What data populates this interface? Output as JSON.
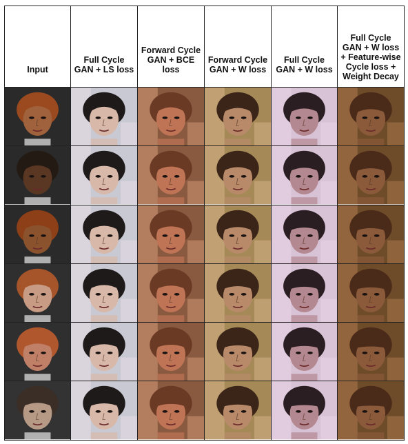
{
  "table": {
    "headers": [
      "Input",
      "Full Cycle GAN + LS loss",
      "Forward Cycle GAN + BCE loss",
      "Forward Cycle GAN + W loss",
      "Full Cycle GAN + W loss",
      "Full Cycle GAN + W loss + Feature-wise Cycle loss + Weight Decay"
    ],
    "rows": 6,
    "input_faces": [
      {
        "skin": "#a0623c",
        "hair": "#9a4a1e",
        "bg": "#2a2a2a"
      },
      {
        "skin": "#5a3722",
        "hair": "#241a14",
        "bg": "#2a2a2a"
      },
      {
        "skin": "#8b522e",
        "hair": "#8d3f17",
        "bg": "#2a2a2a"
      },
      {
        "skin": "#c89c84",
        "hair": "#a6552a",
        "bg": "#2f2f2f"
      },
      {
        "skin": "#c08068",
        "hair": "#b0572e",
        "bg": "#2f2f2f"
      },
      {
        "skin": "#b69a86",
        "hair": "#3a2e27",
        "bg": "#333333"
      }
    ],
    "output_styles": [
      {
        "skin": "#d8b8a8",
        "hair": "#1e1a1a",
        "bg": "#c9c9d3",
        "accent": "#e8dde6"
      },
      {
        "skin": "#c07456",
        "hair": "#6a3a24",
        "bg": "#8a5a40",
        "accent": "#d69a78"
      },
      {
        "skin": "#b88a6a",
        "hair": "#3a2518",
        "bg": "#a58a58",
        "accent": "#d8b48a"
      },
      {
        "skin": "#b48890",
        "hair": "#2a1e22",
        "bg": "#d8c2d6",
        "accent": "#e8d6e6"
      },
      {
        "skin": "#8a5a3a",
        "hair": "#4a2a18",
        "bg": "#6e4c2a",
        "accent": "#b07a4e"
      }
    ]
  }
}
